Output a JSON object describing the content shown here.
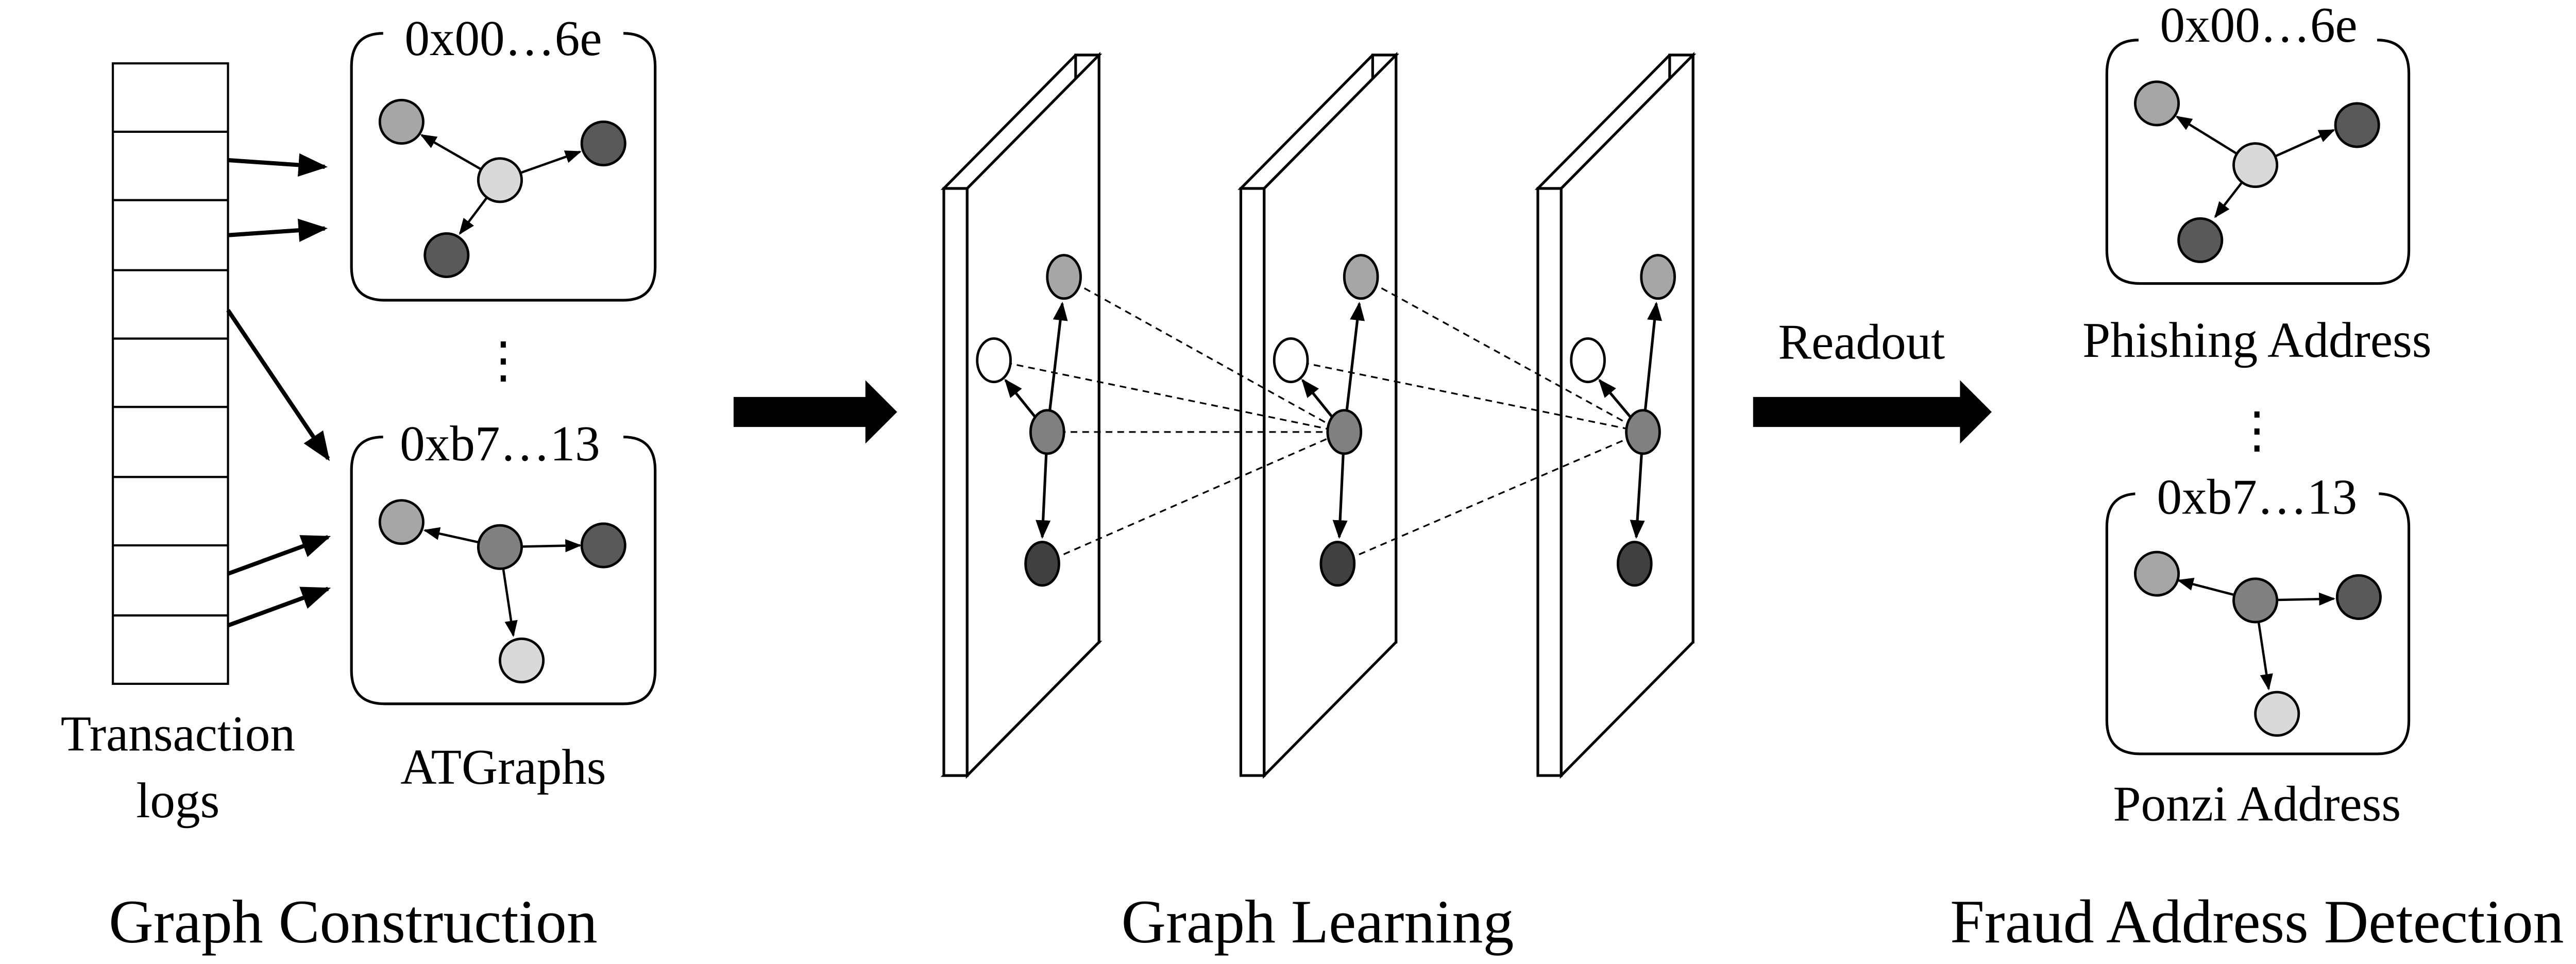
{
  "sections": {
    "construction": "Graph Construction",
    "learning": "Graph Learning",
    "detection": "Fraud Address Detection"
  },
  "labels": {
    "transaction_logs_line1": "Transaction",
    "transaction_logs_line2": "logs",
    "atgraphs": "ATGraphs",
    "readout": "Readout",
    "phishing": "Phishing Address",
    "ponzi": "Ponzi Address"
  },
  "addresses": {
    "first": "0x00…6e",
    "second": "0xb7…13"
  },
  "ellipsis": "⋮",
  "colors": {
    "node_light": "#d9d9d9",
    "node_mid_light": "#a6a6a6",
    "node_mid": "#808080",
    "node_dark": "#595959",
    "node_darker": "#404040",
    "node_white": "#ffffff",
    "stroke": "#000000"
  }
}
